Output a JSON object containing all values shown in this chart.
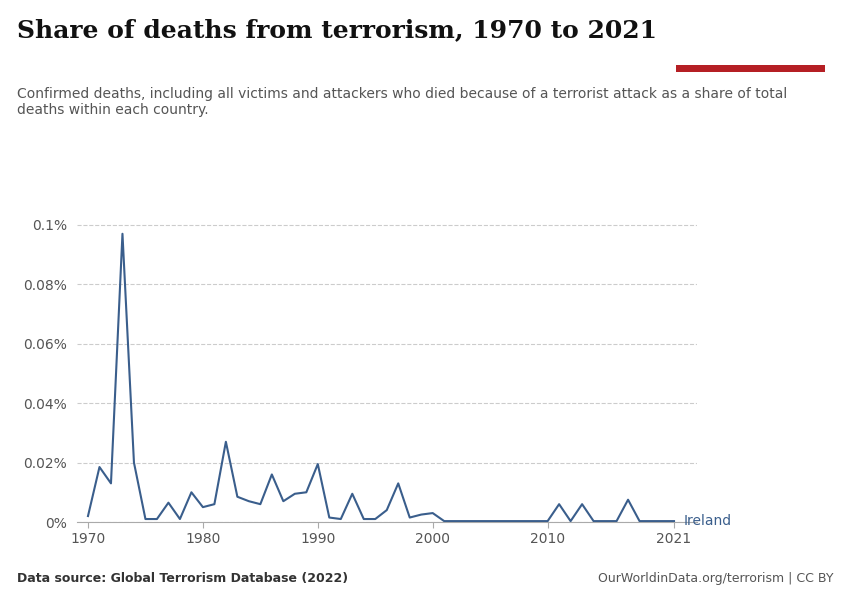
{
  "title": "Share of deaths from terrorism, 1970 to 2021",
  "subtitle": "Confirmed deaths, including all victims and attackers who died because of a terrorist attack as a share of total\ndeaths within each country.",
  "data_source": "Data source: Global Terrorism Database (2022)",
  "url": "OurWorldinData.org/terrorism | CC BY",
  "country_label": "Ireland",
  "line_color": "#3a5e8c",
  "background_color": "#ffffff",
  "years": [
    1970,
    1971,
    1972,
    1973,
    1974,
    1975,
    1976,
    1977,
    1978,
    1979,
    1980,
    1981,
    1982,
    1983,
    1984,
    1985,
    1986,
    1987,
    1988,
    1989,
    1990,
    1991,
    1992,
    1993,
    1994,
    1995,
    1996,
    1997,
    1998,
    1999,
    2000,
    2001,
    2002,
    2003,
    2004,
    2005,
    2006,
    2007,
    2008,
    2009,
    2010,
    2011,
    2012,
    2013,
    2014,
    2015,
    2016,
    2017,
    2018,
    2019,
    2020,
    2021
  ],
  "values": [
    2e-05,
    0.000185,
    0.00013,
    0.00097,
    0.0002,
    1e-05,
    1e-05,
    6.5e-05,
    1e-05,
    0.0001,
    5e-05,
    6e-05,
    0.00027,
    8.5e-05,
    7e-05,
    6e-05,
    0.00016,
    7e-05,
    9.5e-05,
    0.0001,
    0.000195,
    1.5e-05,
    1e-05,
    9.5e-05,
    1e-05,
    1e-05,
    4e-05,
    0.00013,
    1.5e-05,
    2.5e-05,
    3e-05,
    3e-06,
    3e-06,
    3e-06,
    3e-06,
    3e-06,
    3e-06,
    3e-06,
    3e-06,
    3e-06,
    3e-06,
    6e-05,
    3e-06,
    6e-05,
    3e-06,
    3e-06,
    3e-06,
    7.5e-05,
    3e-06,
    3e-06,
    3e-06,
    3e-06
  ],
  "ytick_vals": [
    0.0,
    0.0002,
    0.0004,
    0.0006,
    0.0008,
    0.001
  ],
  "ytick_labels": [
    "0%",
    "0.02%",
    "0.04%",
    "0.06%",
    "0.08%",
    "0.1%"
  ],
  "ylim": [
    0,
    0.00105
  ],
  "xlim": [
    1969,
    2023
  ],
  "xticks": [
    1970,
    1980,
    1990,
    2000,
    2010,
    2021
  ],
  "owid_box_color": "#1a3a5c",
  "owid_red": "#b51f24",
  "title_fontsize": 18,
  "subtitle_fontsize": 10,
  "tick_fontsize": 10
}
